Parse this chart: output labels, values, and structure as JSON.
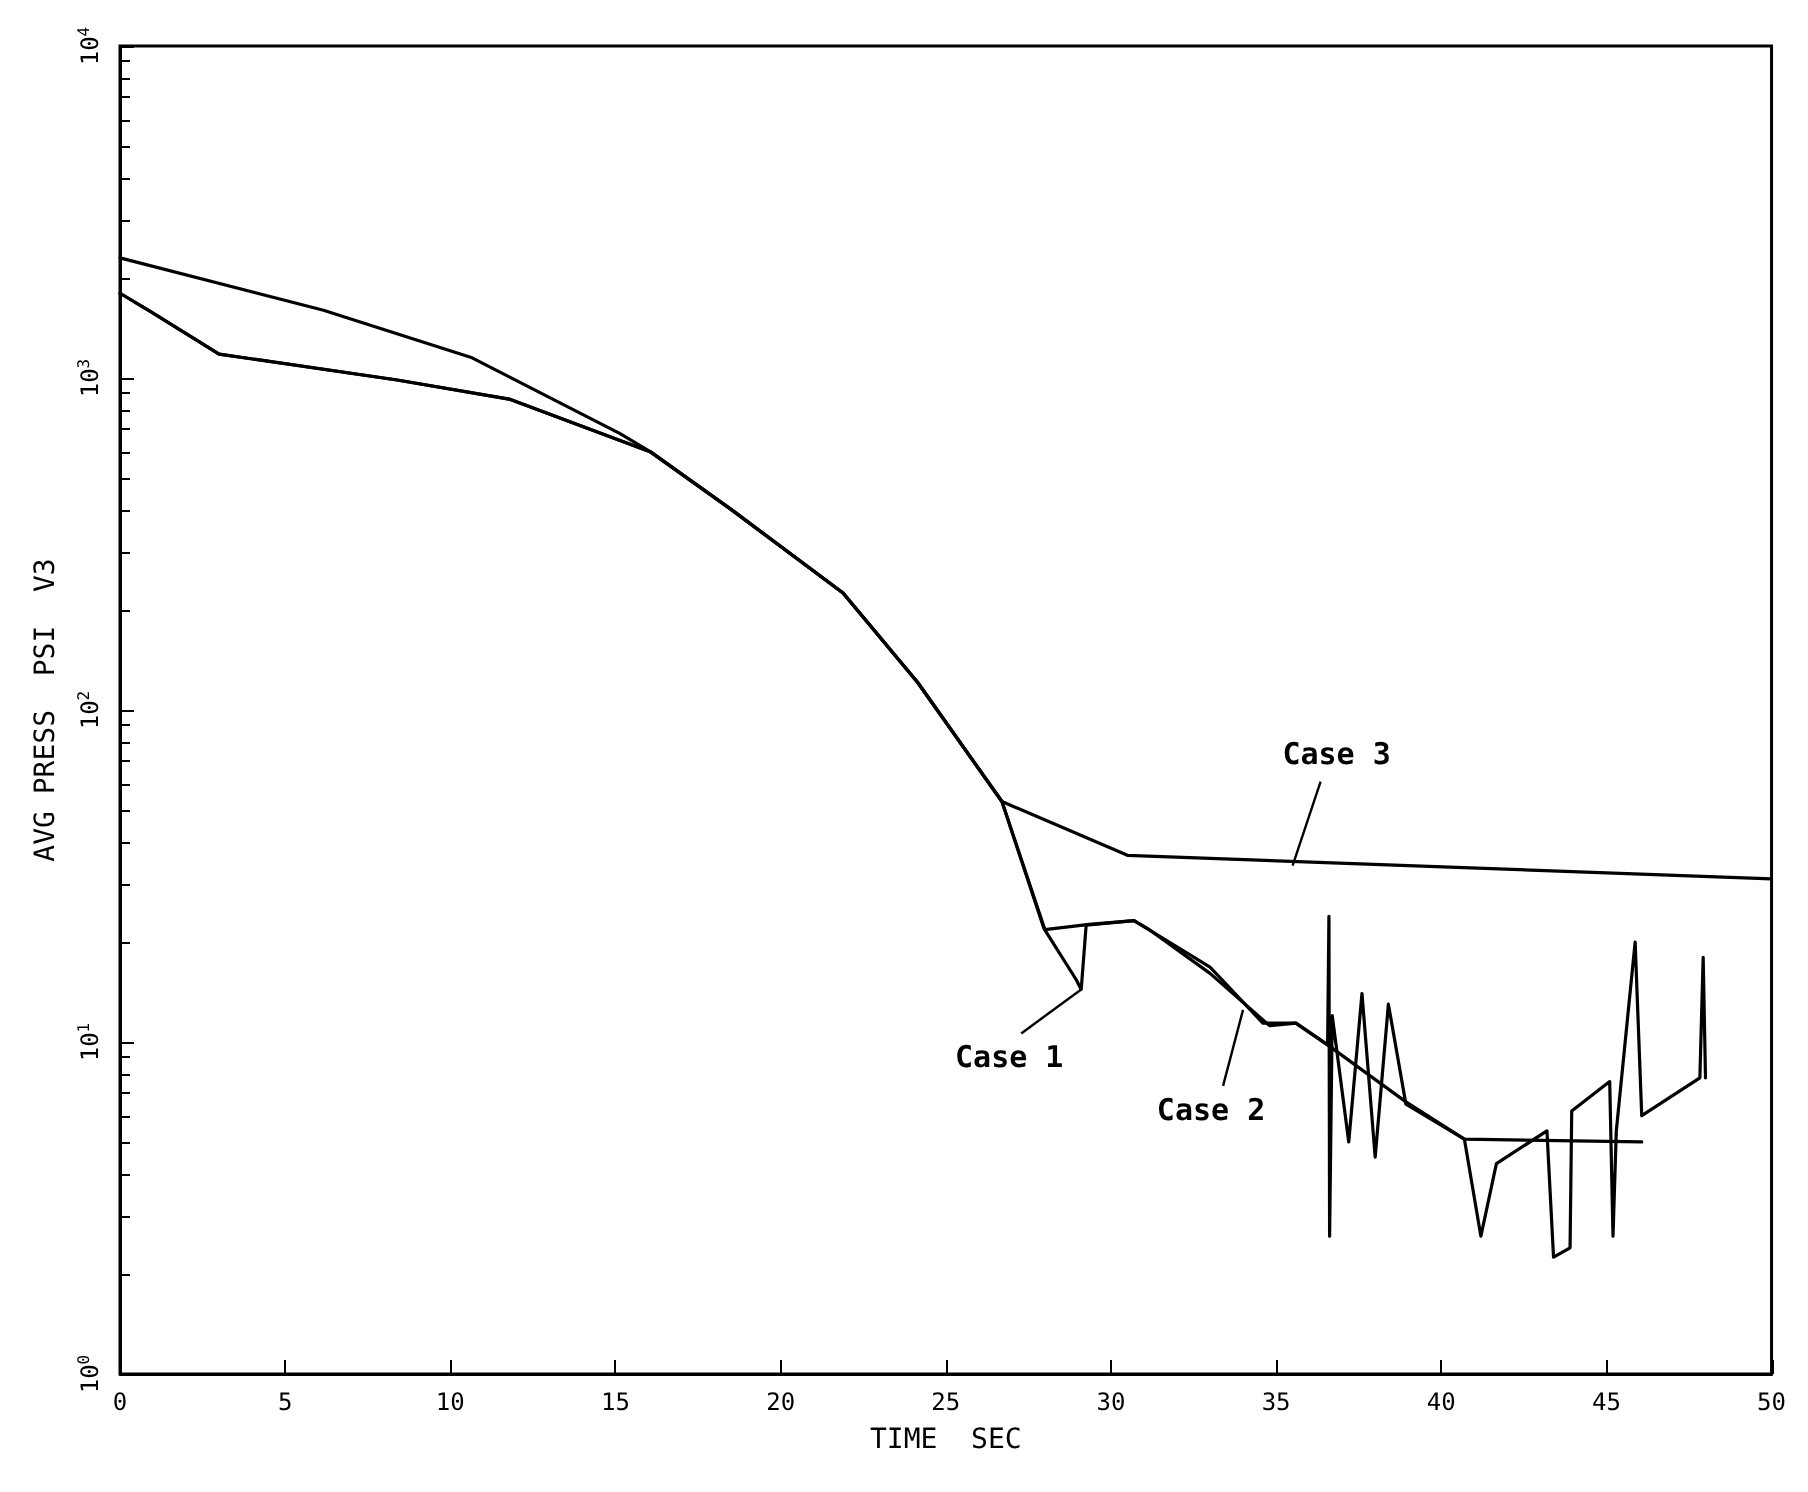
{
  "chart_data": {
    "type": "line",
    "xlabel": "TIME  SEC",
    "ylabel": "AVG PRESS  PSI  V3",
    "log": "y",
    "grid": false,
    "legend": false,
    "marker": "none",
    "line_style": "solid",
    "xlim": [
      0,
      50
    ],
    "xticks": [
      0,
      5,
      10,
      15,
      20,
      25,
      30,
      35,
      40,
      45,
      50
    ],
    "ylim": [
      1,
      10000
    ],
    "yticks": [
      {
        "value": 1,
        "label": "10$^{0}$"
      },
      {
        "value": 10,
        "label": "10$^{1}$"
      },
      {
        "value": 100,
        "label": "10$^{2}$"
      },
      {
        "value": 1000,
        "label": "10$^{3}$"
      },
      {
        "value": 10000,
        "label": "10$^{4}$"
      }
    ],
    "series": [
      {
        "color": "#000000",
        "x": [
          0,
          6.16,
          10.66,
          15.14,
          16.05,
          18.53,
          21.89,
          24.15,
          26.7,
          30.5,
          50
        ],
        "values": [
          2300,
          1600,
          1150,
          680,
          600,
          400,
          225,
          121,
          53,
          36.5,
          31
        ]
      },
      {
        "color": "#000000",
        "x": [
          0,
          0.99,
          3.0,
          8.39,
          11.78,
          16.05,
          18.53,
          21.89,
          24.15,
          26.7,
          27.97,
          28.95,
          29.1,
          29.25,
          30.7,
          31.1,
          33.0,
          34.8,
          35.6,
          36.56,
          36.6,
          36.62,
          36.7,
          37.2,
          37.6,
          38.0,
          38.4,
          38.93,
          40.7,
          41.2,
          41.67,
          43.2,
          43.4,
          43.9,
          43.95,
          45.1,
          45.2,
          45.3,
          45.87,
          46.07,
          47.83,
          47.93,
          48.0
        ],
        "values": [
          1800,
          1570,
          1180,
          986,
          864,
          600,
          400,
          225,
          121,
          53,
          22,
          15.4,
          14.4,
          22.5,
          23.2,
          22,
          16.1,
          11.2,
          11.4,
          9.8,
          23.9,
          2.6,
          12,
          5,
          14,
          4.5,
          13,
          6.5,
          5.1,
          2.6,
          4.3,
          5.4,
          2.25,
          2.4,
          6.2,
          7.6,
          2.6,
          5.4,
          20,
          6.0,
          7.8,
          18,
          7.8
        ]
      },
      {
        "color": "#000000",
        "x": [
          0,
          0.99,
          3.0,
          8.39,
          11.78,
          16.05,
          18.53,
          21.89,
          24.15,
          26.7,
          28.0,
          29.34,
          30.7,
          33.0,
          34.6,
          35.6,
          36.56,
          38.93,
          40.7,
          46.07
        ],
        "values": [
          1800,
          1570,
          1180,
          986,
          864,
          600,
          400,
          225,
          121,
          53,
          21.8,
          22.6,
          23.2,
          16.8,
          11.4,
          11.4,
          9.8,
          6.6,
          5.1,
          5.0
        ]
      }
    ],
    "annotations": [
      {
        "text": "Case 1",
        "x": 29.1,
        "y": 14.4
      },
      {
        "text": "Case 2",
        "x": 34.0,
        "y": 12.5
      },
      {
        "text": "Case 3",
        "x": 35.5,
        "y": 34
      }
    ]
  }
}
